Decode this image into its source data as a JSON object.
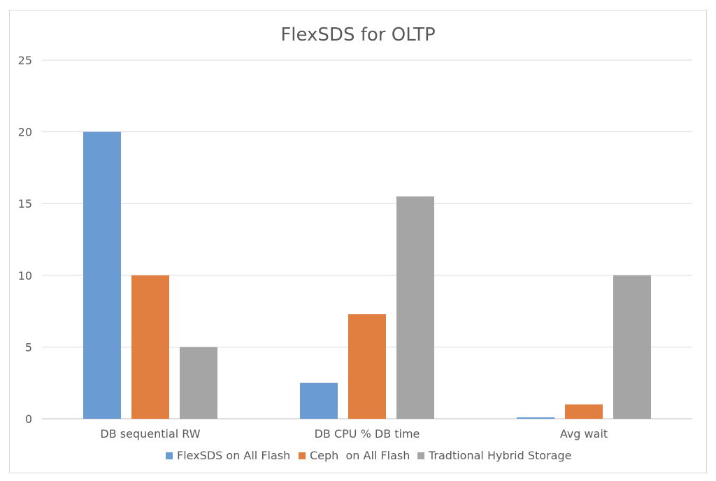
{
  "chart_data": {
    "type": "bar",
    "title": "FlexSDS for OLTP",
    "xlabel": "",
    "ylabel": "",
    "categories": [
      "DB sequential RW",
      "DB CPU % DB time",
      "Avg wait"
    ],
    "series": [
      {
        "name": "FlexSDS on All Flash",
        "color": "#6a9bd2",
        "values": [
          20,
          2.5,
          0.1
        ]
      },
      {
        "name": "Ceph  on All Flash",
        "color": "#e07f3f",
        "values": [
          10,
          7.3,
          1
        ]
      },
      {
        "name": "Tradtional Hybrid Storage",
        "color": "#a5a5a5",
        "values": [
          5,
          15.5,
          10
        ]
      }
    ],
    "ylim": [
      0,
      25
    ],
    "yticks": [
      0,
      5,
      10,
      15,
      20,
      25
    ],
    "grid": true,
    "legend_position": "bottom"
  }
}
